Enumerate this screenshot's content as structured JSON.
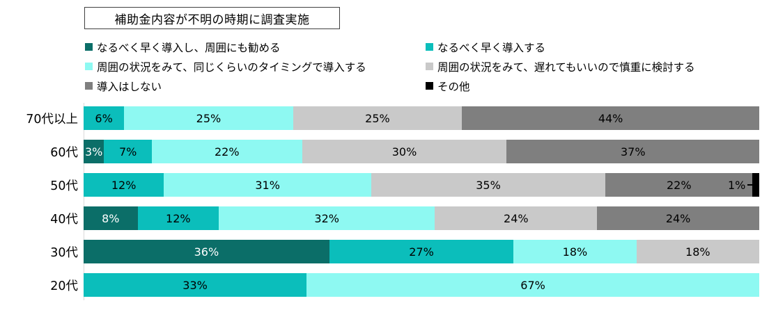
{
  "chart_data": {
    "type": "bar",
    "variant": "horizontal-stacked-100",
    "title": "補助金内容が不明の時期に調査実施",
    "legend_position": "top",
    "grid": false,
    "xlim": [
      0,
      100
    ],
    "value_suffix": "%",
    "categories": [
      "70代以上",
      "60代",
      "50代",
      "40代",
      "30代",
      "20代"
    ],
    "series": [
      {
        "name": "なるべく早く導入し、周囲にも勧める",
        "color": "#0B6E68",
        "label_color": "#FFFFFF",
        "values": [
          0,
          3,
          0,
          8,
          36,
          0
        ]
      },
      {
        "name": "なるべく早く導入する",
        "color": "#0BBEBB",
        "label_color": "#000000",
        "values": [
          6,
          7,
          12,
          12,
          27,
          33
        ]
      },
      {
        "name": "周囲の状況をみて、同じくらいのタイミングで導入する",
        "color": "#8EF9F2",
        "label_color": "#000000",
        "values": [
          25,
          22,
          31,
          32,
          18,
          67
        ]
      },
      {
        "name": "周囲の状況をみて、遅れてもいいので慎重に検討する",
        "color": "#C9C9C9",
        "label_color": "#000000",
        "values": [
          25,
          30,
          35,
          24,
          18,
          0
        ]
      },
      {
        "name": "導入はしない",
        "color": "#7F7F7F",
        "label_color": "#000000",
        "values": [
          44,
          37,
          22,
          24,
          0,
          0
        ]
      },
      {
        "name": "その他",
        "color": "#000000",
        "label_color": "#000000",
        "values": [
          0,
          0,
          1,
          0,
          0,
          0
        ]
      }
    ]
  },
  "style": {
    "axis_color": "#D9D9D9",
    "title_border_color": "#404040",
    "background": "#FFFFFF"
  }
}
